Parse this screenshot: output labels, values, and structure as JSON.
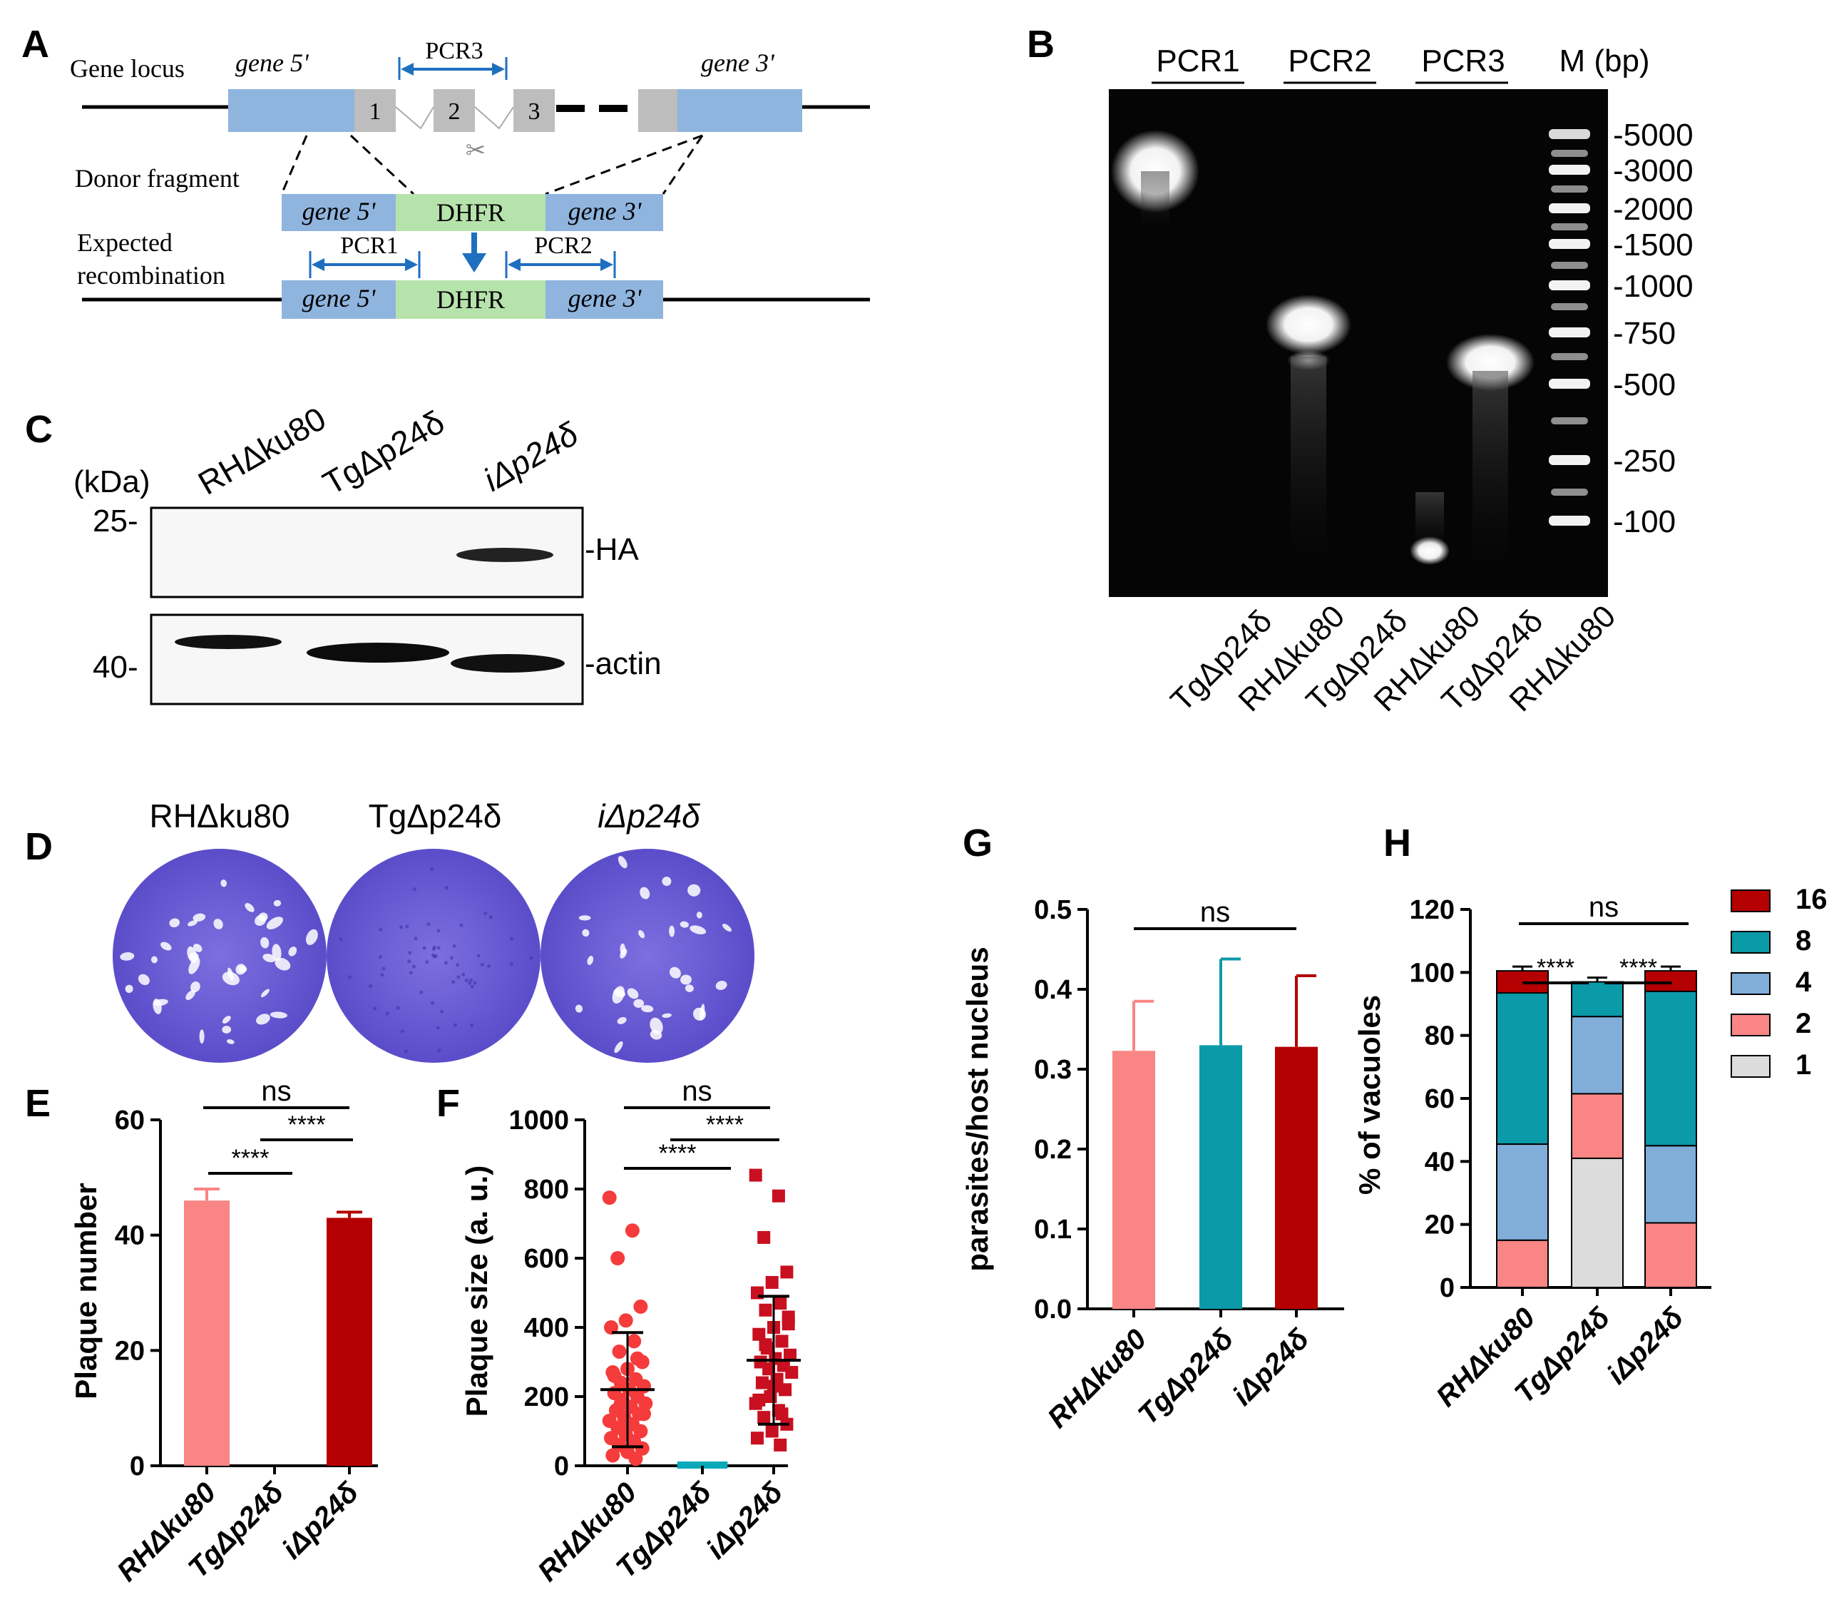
{
  "panels": {
    "A": {
      "letter": "A",
      "gene_locus": "Gene locus",
      "gene5": "gene 5'",
      "gene3": "gene 3'",
      "exons": [
        "1",
        "2",
        "3"
      ],
      "pcr3": "PCR3",
      "donor": "Donor fragment",
      "dhfr": "DHFR",
      "expected1": "Expected",
      "expected2": "recombination",
      "pcr1": "PCR1",
      "pcr2": "PCR2"
    },
    "B": {
      "letter": "B",
      "groups": [
        "PCR1",
        "PCR2",
        "PCR3"
      ],
      "marker": "M (bp)",
      "ladder": [
        "-5000",
        "-3000",
        "-2000",
        "-1500",
        "-1000",
        "-750",
        "-500",
        "-250",
        "-100"
      ],
      "lanes": [
        "TgΔp24δ",
        "RHΔku80",
        "TgΔp24δ",
        "RHΔku80",
        "TgΔp24δ",
        "RHΔku80"
      ]
    },
    "C": {
      "letter": "C",
      "kda": "(kDa)",
      "samples": [
        "RHΔku80",
        "TgΔp24δ",
        "iΔp24δ"
      ],
      "mw_top": "25-",
      "mw_bottom": "40-",
      "label_top": "-HA",
      "label_bottom": "-actin"
    },
    "D": {
      "letter": "D",
      "samples": [
        "RHΔku80",
        "TgΔp24δ",
        "iΔp24δ"
      ]
    },
    "E": {
      "letter": "E",
      "sig": [
        "ns",
        "****",
        "****"
      ]
    },
    "F": {
      "letter": "F",
      "sig": [
        "ns",
        "****",
        "****"
      ]
    },
    "G": {
      "letter": "G",
      "sig": [
        "ns"
      ]
    },
    "H": {
      "letter": "H",
      "sig": [
        "ns",
        "****",
        "****"
      ]
    }
  },
  "chart_data": [
    {
      "panel": "E",
      "type": "bar",
      "categories": [
        "RHΔku80",
        "TgΔp24δ",
        "iΔp24δ"
      ],
      "values": [
        46,
        0,
        43
      ],
      "errors": [
        2,
        0,
        1
      ],
      "ylabel": "Plaque number",
      "ylim": [
        0,
        60
      ],
      "yticks": [
        0,
        20,
        40,
        60
      ],
      "colors": [
        "#f98585",
        "#0a9aa8",
        "#b40000"
      ]
    },
    {
      "panel": "F",
      "type": "scatter",
      "categories": [
        "RHΔku80",
        "TgΔp24δ",
        "iΔp24δ"
      ],
      "ylabel": "Plaque size (a. u.)",
      "ylim": [
        0,
        1000
      ],
      "yticks": [
        0,
        200,
        400,
        600,
        800,
        1000
      ],
      "means": [
        220,
        0,
        305
      ],
      "sd_upper": [
        385,
        0,
        490
      ],
      "sd_lower": [
        55,
        0,
        120
      ],
      "points": [
        [
          775,
          680,
          600,
          460,
          420,
          400,
          360,
          330,
          300,
          280,
          270,
          250,
          240,
          230,
          220,
          210,
          200,
          190,
          180,
          170,
          160,
          150,
          140,
          130,
          120,
          110,
          100,
          90,
          80,
          70,
          60,
          50,
          40,
          30,
          20,
          180,
          150,
          120,
          260,
          310
        ],
        [
          0,
          0,
          0,
          0,
          0,
          0,
          0,
          0,
          0,
          0,
          0,
          0,
          0,
          0,
          0,
          0,
          0,
          0,
          0,
          0
        ],
        [
          840,
          780,
          660,
          560,
          530,
          500,
          470,
          450,
          430,
          400,
          380,
          360,
          340,
          320,
          310,
          300,
          290,
          280,
          270,
          250,
          240,
          220,
          200,
          180,
          160,
          140,
          120,
          100,
          80,
          60,
          350,
          410,
          230,
          190,
          150
        ]
      ],
      "colors": [
        "#f53b3b",
        "#0aa9ba",
        "#c81020"
      ]
    },
    {
      "panel": "G",
      "type": "bar",
      "categories": [
        "RHΔku80",
        "TgΔp24δ",
        "iΔp24δ"
      ],
      "values": [
        0.323,
        0.33,
        0.328
      ],
      "errors": [
        0.062,
        0.108,
        0.089
      ],
      "ylabel": "parasites/host nucleus",
      "ylim": [
        0,
        0.5
      ],
      "yticks": [
        0.0,
        0.1,
        0.2,
        0.3,
        0.4,
        0.5
      ],
      "colors": [
        "#f98585",
        "#0a9aa8",
        "#b40000"
      ]
    },
    {
      "panel": "H",
      "type": "bar",
      "stacked": true,
      "categories": [
        "RHΔku80",
        "TgΔp24δ",
        "iΔp24δ"
      ],
      "ylabel": "% of vacuoles",
      "ylim": [
        0,
        120
      ],
      "yticks": [
        0,
        20,
        40,
        60,
        80,
        100,
        120
      ],
      "legend_position": "right",
      "series": [
        {
          "name": "1",
          "values": [
            0,
            41,
            0
          ],
          "color": "#dcdcdc"
        },
        {
          "name": "2",
          "values": [
            15,
            20.5,
            20.5
          ],
          "color": "#f98585"
        },
        {
          "name": "4",
          "values": [
            30.5,
            24.5,
            24.5
          ],
          "color": "#80aed9"
        },
        {
          "name": "8",
          "values": [
            48,
            11,
            49
          ],
          "color": "#0a9aa8"
        },
        {
          "name": "16",
          "values": [
            7,
            0,
            6.5
          ],
          "color": "#b40000"
        }
      ]
    }
  ]
}
